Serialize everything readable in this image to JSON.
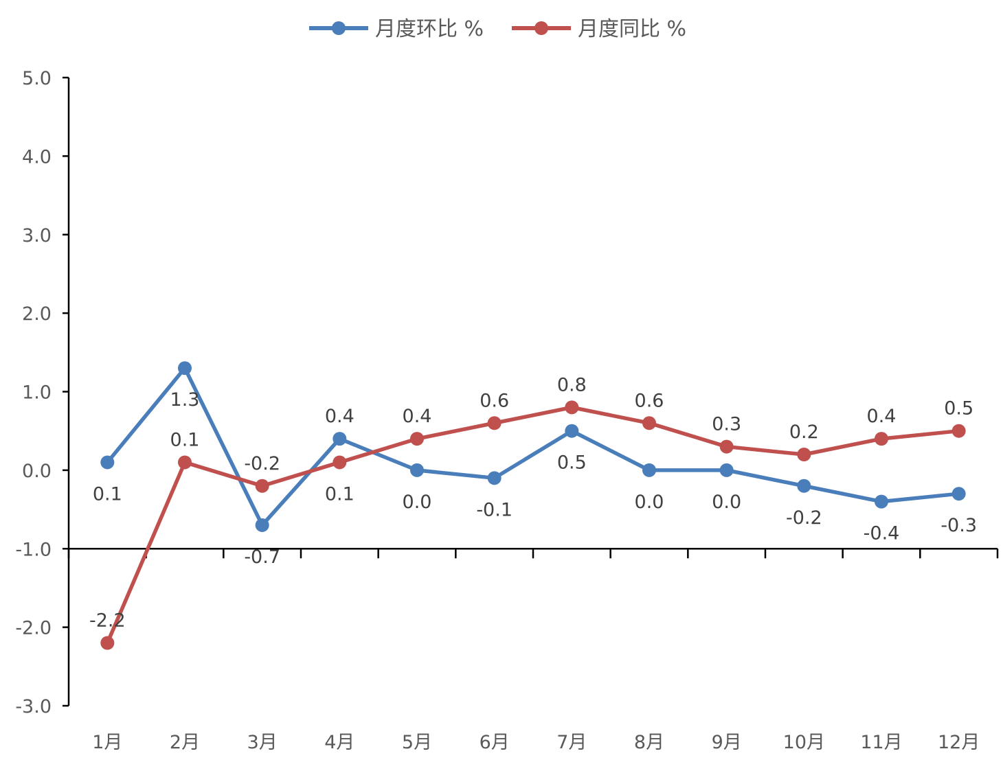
{
  "chart_data": {
    "type": "line",
    "categories": [
      "1月",
      "2月",
      "3月",
      "4月",
      "5月",
      "6月",
      "7月",
      "8月",
      "9月",
      "10月",
      "11月",
      "12月"
    ],
    "series": [
      {
        "name": "月度环比 %",
        "color": "#4a7ebb",
        "values": [
          0.1,
          1.3,
          -0.7,
          0.4,
          0.0,
          -0.1,
          0.5,
          0.0,
          0.0,
          -0.2,
          -0.4,
          -0.3
        ],
        "labels": [
          "0.1",
          "1.3",
          "-0.7",
          "0.4",
          "0.0",
          "-0.1",
          "0.5",
          "0.0",
          "0.0",
          "-0.2",
          "-0.4",
          "-0.3"
        ]
      },
      {
        "name": "月度同比 %",
        "color": "#c0504d",
        "values": [
          -2.2,
          0.1,
          -0.2,
          0.1,
          0.4,
          0.6,
          0.8,
          0.6,
          0.3,
          0.2,
          0.4,
          0.5
        ],
        "labels": [
          "-2.2",
          "0.1",
          "-0.2",
          "0.1",
          "0.4",
          "0.6",
          "0.8",
          "0.6",
          "0.3",
          "0.2",
          "0.4",
          "0.5"
        ]
      }
    ],
    "y_ticks": [
      "5.0",
      "4.0",
      "3.0",
      "2.0",
      "1.0",
      "0.0",
      "-1.0",
      "-2.0",
      "-3.0"
    ],
    "ylim": [
      -3.0,
      5.0
    ],
    "category_axis_crosses_at": -1.0,
    "legend_position": "top",
    "grid": false
  }
}
